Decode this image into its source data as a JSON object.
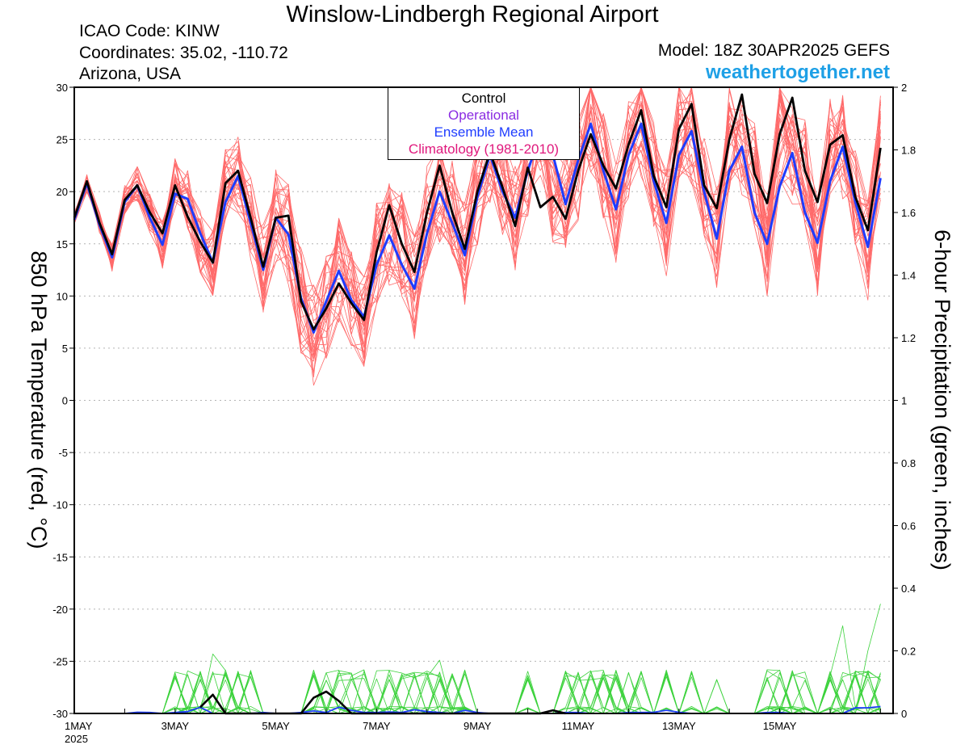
{
  "header": {
    "title": "Winslow-Lindbergh Regional Airport",
    "icao": "ICAO Code: KINW",
    "coords": "Coordinates: 35.02, -110.72",
    "region": "Arizona, USA",
    "model": "Model: 18Z 30APR2025 GEFS",
    "site": "weathertogether.net"
  },
  "legend": {
    "control": "Control",
    "operational": "Operational",
    "mean": "Ensemble Mean",
    "climatology": "Climatology (1981-2010)"
  },
  "colors": {
    "control": "#000000",
    "operational": "#8a2be2",
    "mean": "#1e3cff",
    "climatology": "#e0197d",
    "members_temp": "#ff6a6a",
    "members_precip": "#3cd23c",
    "site": "#1ea0e6",
    "grid": "#b4b4b4"
  },
  "chart_data": {
    "type": "line",
    "xlabel": "",
    "ylabel": "850 hPa Temperature (red, °C)",
    "y2label": "6-hour Precipitation (green, inches)",
    "x_ticks": [
      "1MAY",
      "3MAY",
      "5MAY",
      "7MAY",
      "9MAY",
      "11MAY",
      "13MAY",
      "15MAY"
    ],
    "x_year": "2025",
    "xlim": [
      "2025-05-01 00Z",
      "2025-05-17 06Z"
    ],
    "x_step_hours": 6,
    "ylim": [
      -30,
      30
    ],
    "y_ticks": [
      30,
      25,
      20,
      15,
      10,
      5,
      0,
      -5,
      -10,
      -15,
      -20,
      -25,
      -30
    ],
    "y2lim": [
      0,
      2
    ],
    "y2_ticks": [
      2,
      1.8,
      1.6,
      1.4,
      1.2,
      1,
      0.8,
      0.6,
      0.4,
      0.2,
      0
    ],
    "grid": true,
    "legend_position": "top-center",
    "series": [
      {
        "name": "Control",
        "axis": "left",
        "x_start": "2025-05-01 00Z",
        "values": [
          17.5,
          21,
          17,
          14,
          19.2,
          20.6,
          18,
          16,
          20.6,
          17.6,
          15.2,
          13.2,
          20.8,
          22,
          17.5,
          12.8,
          17.5,
          17.7,
          9.5,
          6.8,
          8.8,
          11.2,
          9.3,
          7.7,
          14.2,
          18.7,
          15,
          12.3,
          18,
          22.5,
          18,
          14.5,
          20,
          23.8,
          20.4,
          16.7,
          22.3,
          18.5,
          19.5,
          17.4,
          22,
          25.5,
          22.5,
          20.3,
          24.5,
          27.8,
          21.5,
          18.5,
          26,
          28.4,
          20.6,
          18.4,
          25,
          29.3,
          21.7,
          18.9,
          25.5,
          29,
          22,
          19,
          24.5,
          25.4,
          19.5,
          16.3,
          24.2
        ]
      },
      {
        "name": "Ensemble Mean",
        "axis": "left",
        "x_start": "2025-05-01 00Z",
        "values": [
          17.3,
          20.8,
          16.8,
          13.7,
          19,
          20.6,
          17.5,
          14.9,
          19.8,
          19.3,
          16,
          13.2,
          19,
          21.5,
          17,
          12.5,
          17.5,
          15.9,
          9.8,
          6.5,
          9.5,
          12.4,
          9.6,
          8,
          13,
          15.8,
          13,
          10.7,
          16,
          20,
          17,
          13.9,
          19.5,
          23.5,
          20,
          17.5,
          22,
          25.5,
          23.5,
          18.8,
          23,
          26.5,
          22,
          18.3,
          23.5,
          26.5,
          21,
          17,
          23.5,
          25.8,
          20,
          15.5,
          22,
          24.3,
          18,
          15,
          20.5,
          23.7,
          18,
          15.1,
          21,
          24.3,
          19,
          14.7,
          21.3
        ]
      },
      {
        "name": "Control precipitation",
        "axis": "right",
        "x_start": "2025-05-03 12Z",
        "values": [
          0.02,
          0.06,
          0,
          0,
          0,
          0,
          0,
          0,
          0,
          0.05,
          0.07,
          0.04,
          0,
          0,
          0,
          0,
          0,
          0,
          0,
          0,
          0,
          0,
          0,
          0,
          0,
          0,
          0,
          0,
          0.01,
          0
        ]
      },
      {
        "name": "Ensemble Mean precipitation",
        "axis": "right",
        "x_start": "2025-05-01 00Z",
        "values": [
          0,
          0,
          0,
          0,
          0,
          0.004,
          0.003,
          0,
          0.003,
          0.006,
          0.02,
          0,
          0,
          0,
          0,
          0.003,
          0,
          0,
          0.003,
          0.008,
          0.003,
          0.02,
          0.01,
          0.003,
          0.003,
          0.005,
          0.003,
          0.012,
          0.006,
          0.003,
          0,
          0.01,
          0.003,
          0,
          0,
          0,
          0,
          0,
          0,
          0.003,
          0.003,
          0,
          0,
          0,
          0.003,
          0.003,
          0.004,
          0.01,
          0.004,
          0,
          0,
          0,
          0,
          0,
          0,
          0.003,
          0.003,
          0,
          0,
          0,
          0,
          0,
          0.018,
          0.018,
          0.022
        ]
      }
    ]
  }
}
